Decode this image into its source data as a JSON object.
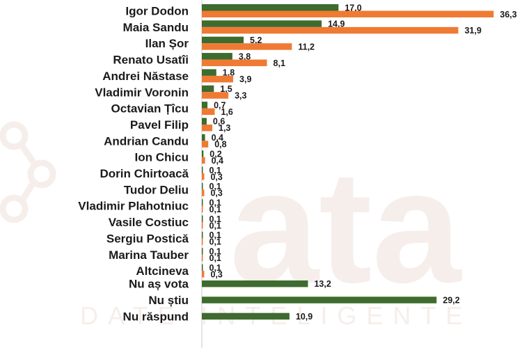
{
  "colors": {
    "green": "#3e6b2e",
    "orange": "#ef7a33",
    "axis": "#c9c9c9",
    "watermark": "#f6eeeb"
  },
  "watermark": {
    "text": "ata",
    "subtext": "DATE INTELIGENTE"
  },
  "chart_data": {
    "type": "bar",
    "orientation": "horizontal",
    "grid": false,
    "legend": "none",
    "xlim": [
      0,
      40
    ],
    "categories": [
      "Igor Dodon",
      "Maia Sandu",
      "Ilan Șor",
      "Renato Usatîi",
      "Andrei Năstase",
      "Vladimir Voronin",
      "Octavian Țîcu",
      "Pavel Filip",
      "Andrian Candu",
      "Ion Chicu",
      "Dorin Chirtoacă",
      "Tudor Deliu",
      "Vladimir Plahotniuc",
      "Vasile Costiuc",
      "Sergiu Postică",
      "Marina Tauber",
      "Altcineva",
      "Nu aș vota",
      "Nu știu",
      "Nu răspund"
    ],
    "series": [
      {
        "color": "#3e6b2e",
        "values": [
          17.0,
          14.9,
          5.2,
          3.8,
          1.8,
          1.5,
          0.7,
          0.6,
          0.4,
          0.2,
          0.1,
          0.1,
          0.1,
          0.1,
          0.1,
          0.1,
          0.1,
          13.2,
          29.2,
          10.9
        ],
        "labels": [
          "17,0",
          "14,9",
          "5,2",
          "3,8",
          "1,8",
          "1,5",
          "0,7",
          "0,6",
          "0,4",
          "0,2",
          "0,1",
          "0,1",
          "0,1",
          "0,1",
          "0,1",
          "0,1",
          "0,1",
          "13,2",
          "29,2",
          "10,9"
        ]
      },
      {
        "color": "#ef7a33",
        "values": [
          36.3,
          31.9,
          11.2,
          8.1,
          3.9,
          3.3,
          1.6,
          1.3,
          0.8,
          0.4,
          0.3,
          0.3,
          0.1,
          0.1,
          0.1,
          0.1,
          0.3,
          null,
          null,
          null
        ],
        "labels": [
          "36,3",
          "31,9",
          "11,2",
          "8,1",
          "3,9",
          "3,3",
          "1,6",
          "1,3",
          "0,8",
          "0,4",
          "0,3",
          "0,3",
          "0,1",
          "0,1",
          "0,1",
          "0,1",
          "0,3",
          "",
          "",
          ""
        ]
      }
    ]
  }
}
